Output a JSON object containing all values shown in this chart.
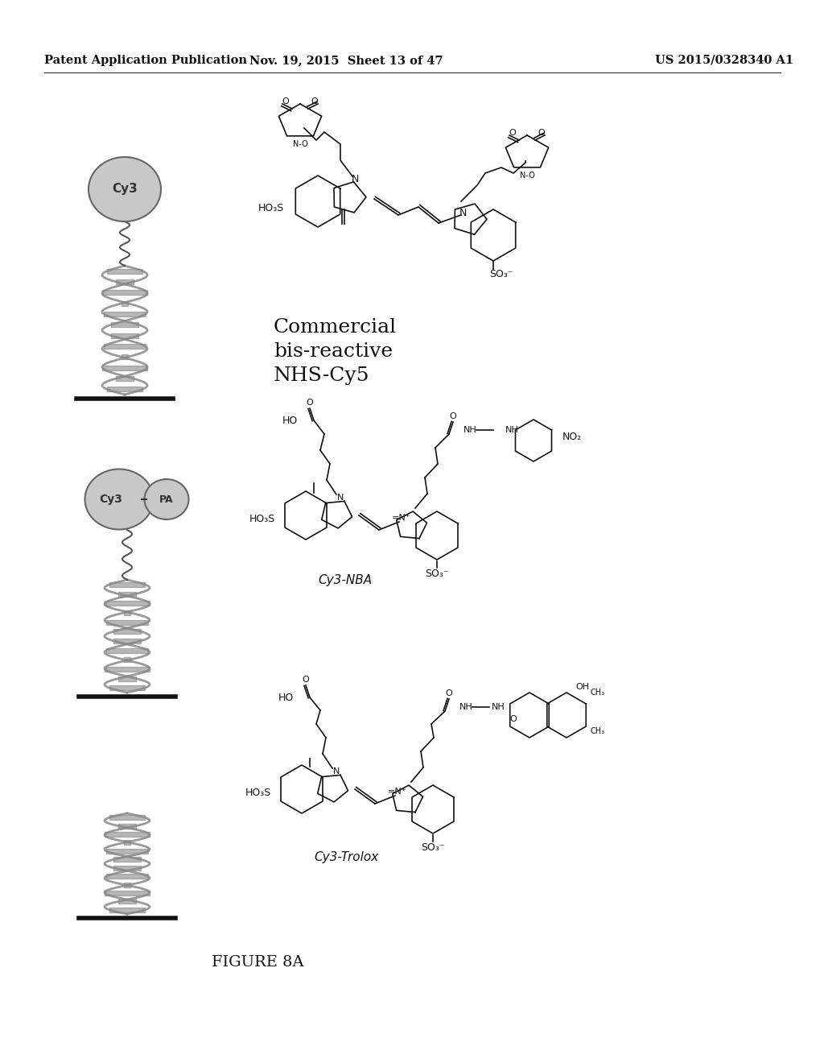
{
  "header_left": "Patent Application Publication",
  "header_center": "Nov. 19, 2015  Sheet 13 of 47",
  "header_right": "US 2015/0328340 A1",
  "figure_label": "FIGURE 8A",
  "background_color": "#ffffff",
  "text_color": "#111111",
  "header_fontsize": 10.5,
  "figure_label_fontsize": 14,
  "commercial_label": "Commercial\nbis-reactive\nNHS-Cy5",
  "cy3nba_label": "Cy3-NBA",
  "cy3trolox_label": "Cy3-Trolox"
}
